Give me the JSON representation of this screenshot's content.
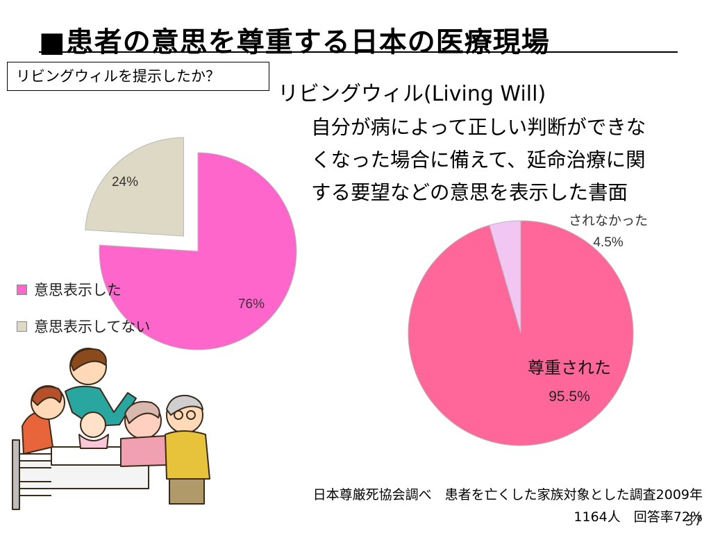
{
  "title": "■患者の意思を尊重する日本の医療現場",
  "question_box": "リビングウィルを提示したか？",
  "term": "リビングウィル(Living Will)",
  "definition_lines": [
    "自分が病によって正しい判断ができな",
    "くなった場合に備えて、延命治療に関",
    "する要望などの意思を表示した書面"
  ],
  "left_legend": [
    {
      "label": "意思表示した",
      "color": "#ff66cc"
    },
    {
      "label": "意思表示してない",
      "color": "#ddd9c4"
    }
  ],
  "source_note": {
    "line1": "日本尊厳死協会調べ　患者を亡くした家族対象とした調査2009年",
    "line2": "1164人　回答率72%"
  },
  "slide_number": "37",
  "illustration": "family-bedside-illustration",
  "chart_data": [
    {
      "type": "pie",
      "slices": [
        {
          "label": "意思表示した",
          "value": 76,
          "text": "76%",
          "color": "#ff66cc",
          "exploded": false
        },
        {
          "label": "意思表示してない",
          "value": 24,
          "text": "24%",
          "color": "#ddd9c4",
          "exploded": true
        }
      ],
      "legend_position": "left"
    },
    {
      "type": "pie",
      "slices": [
        {
          "label": "尊重された",
          "value": 95.5,
          "text": "95.5%",
          "color": "#ff6699",
          "exploded": false
        },
        {
          "label": "されなかった",
          "value": 4.5,
          "text": "4.5%",
          "color": "#f2c6f2",
          "exploded": false
        }
      ]
    }
  ]
}
